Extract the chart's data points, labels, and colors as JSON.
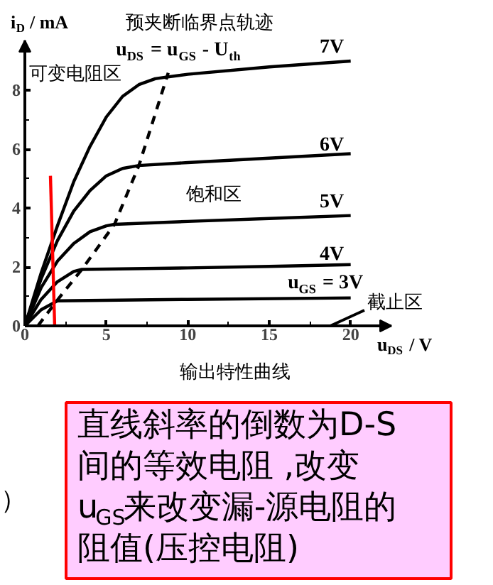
{
  "chart_data": {
    "type": "line",
    "title": "输出特性曲线",
    "xlabel": "u$_{DS}$ / V",
    "ylabel": "i$_{D}$ / mA",
    "xlim": [
      0,
      22.5
    ],
    "ylim": [
      0,
      9.7
    ],
    "xticks": [
      0,
      5,
      10,
      15,
      20
    ],
    "yticks": [
      0,
      2,
      4,
      6,
      8
    ],
    "series": [
      {
        "name": "7V",
        "color": "#000000",
        "x": [
          0,
          1,
          2,
          3,
          4,
          5,
          6,
          7,
          8,
          8.6,
          10,
          15,
          20
        ],
        "values": [
          0,
          1.8,
          3.4,
          4.9,
          6.1,
          7.1,
          7.8,
          8.2,
          8.4,
          8.45,
          8.55,
          8.8,
          9.0
        ]
      },
      {
        "name": "6V",
        "color": "#000000",
        "x": [
          0,
          1,
          2,
          3,
          4,
          5,
          6,
          7,
          10,
          15,
          20
        ],
        "values": [
          0,
          1.6,
          2.9,
          3.9,
          4.6,
          5.1,
          5.35,
          5.45,
          5.55,
          5.7,
          5.85
        ]
      },
      {
        "name": "5V",
        "color": "#000000",
        "x": [
          0,
          1,
          2,
          3,
          4,
          5,
          5.5,
          10,
          15,
          20
        ],
        "values": [
          0,
          1.3,
          2.2,
          2.8,
          3.2,
          3.4,
          3.45,
          3.55,
          3.65,
          3.75
        ]
      },
      {
        "name": "4V",
        "color": "#000000",
        "x": [
          0,
          1,
          2,
          3,
          3.5,
          10,
          15,
          20
        ],
        "values": [
          0,
          0.9,
          1.5,
          1.85,
          1.92,
          1.97,
          2.02,
          2.08
        ]
      },
      {
        "name": "u$_{GS}$ = 3V",
        "color": "#000000",
        "x": [
          0,
          1,
          2,
          10,
          20
        ],
        "values": [
          0,
          0.55,
          0.85,
          0.9,
          0.95
        ]
      },
      {
        "color": "#000000",
        "line_style": "dashed",
        "x": [
          0.8,
          2,
          3.5,
          5.5,
          7,
          8.8
        ],
        "values": [
          0,
          0.88,
          1.92,
          3.45,
          5.45,
          8.6
        ]
      },
      {
        "color": "#ff0000",
        "x": [
          1.57,
          1.83
        ],
        "values": [
          5.1,
          0
        ]
      }
    ],
    "annotations": [
      "预夹断临界点轨迹",
      "u$_{DS}$ = u$_{GS}$ - U$_{th}$",
      "可变电阻区",
      "饱和区",
      "截止区",
      "直线斜率的倒数为D-S间的等效电阻 ,改变u$_{GS}$来改变漏-源电阻的阻值(压控电阻)",
      "）"
    ]
  }
}
